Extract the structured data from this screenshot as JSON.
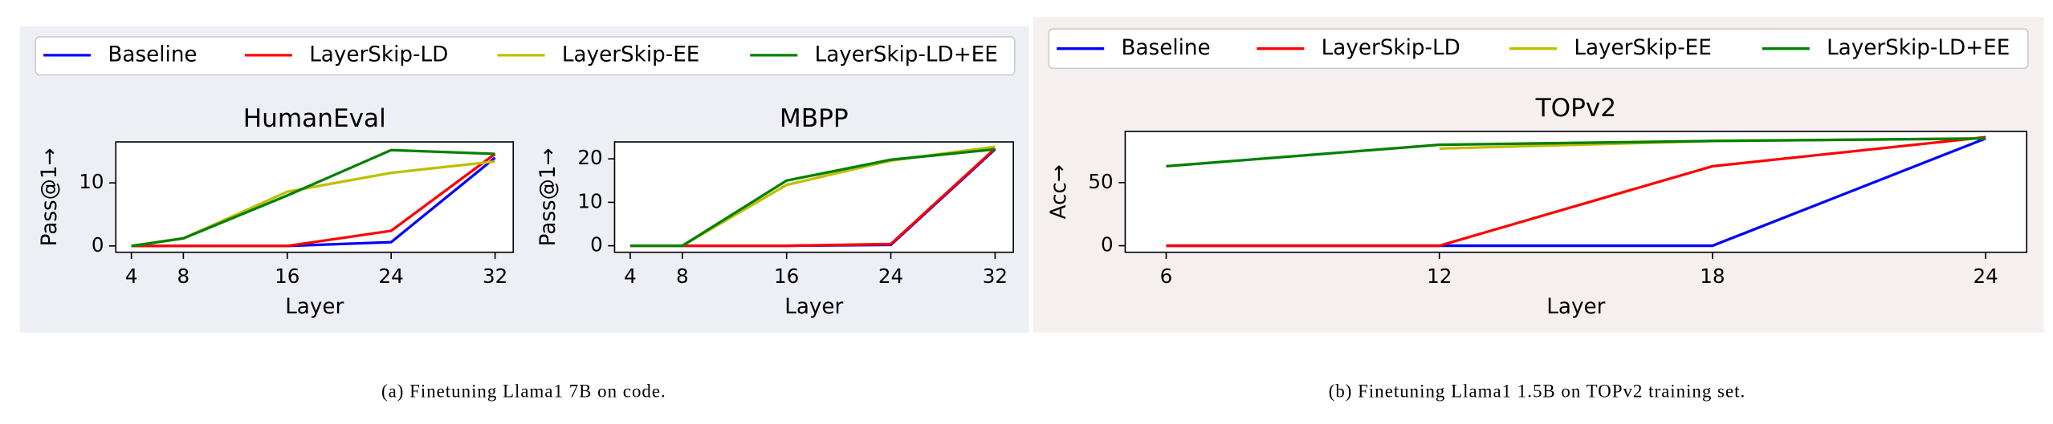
{
  "chart_data": [
    {
      "type": "line",
      "title": "HumanEval",
      "xlabel": "Layer",
      "ylabel": "Pass@1→",
      "x": [
        4,
        8,
        16,
        24,
        32
      ],
      "xlim": [
        2.8,
        33.4
      ],
      "ylim": [
        -1,
        16.5
      ],
      "xticks": [
        4,
        8,
        16,
        24,
        32
      ],
      "yticks": [
        0,
        10
      ],
      "series": [
        {
          "name": "Baseline",
          "color": "#0000ff",
          "values": [
            0,
            0,
            0,
            0.6,
            14.0
          ]
        },
        {
          "name": "LayerSkip-LD",
          "color": "#ff0000",
          "values": [
            0,
            0,
            0,
            2.4,
            14.6
          ]
        },
        {
          "name": "LayerSkip-EE",
          "color": "#bfbf00",
          "values": [
            0,
            1.2,
            8.6,
            11.6,
            13.4
          ]
        },
        {
          "name": "LayerSkip-LD+EE",
          "color": "#008000",
          "values": [
            0,
            1.2,
            8.0,
            15.2,
            14.6
          ]
        }
      ]
    },
    {
      "type": "line",
      "title": "MBPP",
      "xlabel": "Layer",
      "ylabel": "Pass@1→",
      "x": [
        4,
        8,
        16,
        24,
        32
      ],
      "xlim": [
        2.8,
        33.4
      ],
      "ylim": [
        -1.5,
        23.9
      ],
      "xticks": [
        4,
        8,
        16,
        24,
        32
      ],
      "yticks": [
        0,
        10,
        20
      ],
      "series": [
        {
          "name": "Baseline",
          "color": "#0000ff",
          "values": [
            0,
            0,
            0,
            0.2,
            22.2
          ]
        },
        {
          "name": "LayerSkip-LD",
          "color": "#ff0000",
          "values": [
            0,
            0,
            0,
            0.4,
            22.4
          ]
        },
        {
          "name": "LayerSkip-EE",
          "color": "#bfbf00",
          "values": [
            0,
            0,
            14,
            19.6,
            22.8
          ]
        },
        {
          "name": "LayerSkip-LD+EE",
          "color": "#008000",
          "values": [
            0,
            0,
            15,
            19.8,
            22.2
          ]
        }
      ]
    },
    {
      "type": "line",
      "title": "TOPv2",
      "xlabel": "Layer",
      "ylabel": "Acc→",
      "x": [
        6,
        12,
        18,
        24
      ],
      "xlim": [
        5.1,
        24.9
      ],
      "ylim": [
        -5.2,
        90.6
      ],
      "xticks": [
        6,
        12,
        18,
        24
      ],
      "yticks": [
        0,
        50
      ],
      "series": [
        {
          "name": "Baseline",
          "color": "#0000ff",
          "values": [
            0,
            0,
            0,
            85
          ]
        },
        {
          "name": "LayerSkip-LD",
          "color": "#ff0000",
          "values": [
            0,
            0,
            63,
            86
          ]
        },
        {
          "name": "LayerSkip-EE",
          "color": "#bfbf00",
          "values": [
            null,
            77,
            83,
            85
          ]
        },
        {
          "name": "LayerSkip-LD+EE",
          "color": "#008000",
          "values": [
            63,
            80,
            83,
            85
          ]
        }
      ]
    }
  ],
  "captions": [
    "(a) Finetuning Llama1 7B on code.",
    "(b) Finetuning Llama1 1.5B on TOPv2 training set."
  ]
}
